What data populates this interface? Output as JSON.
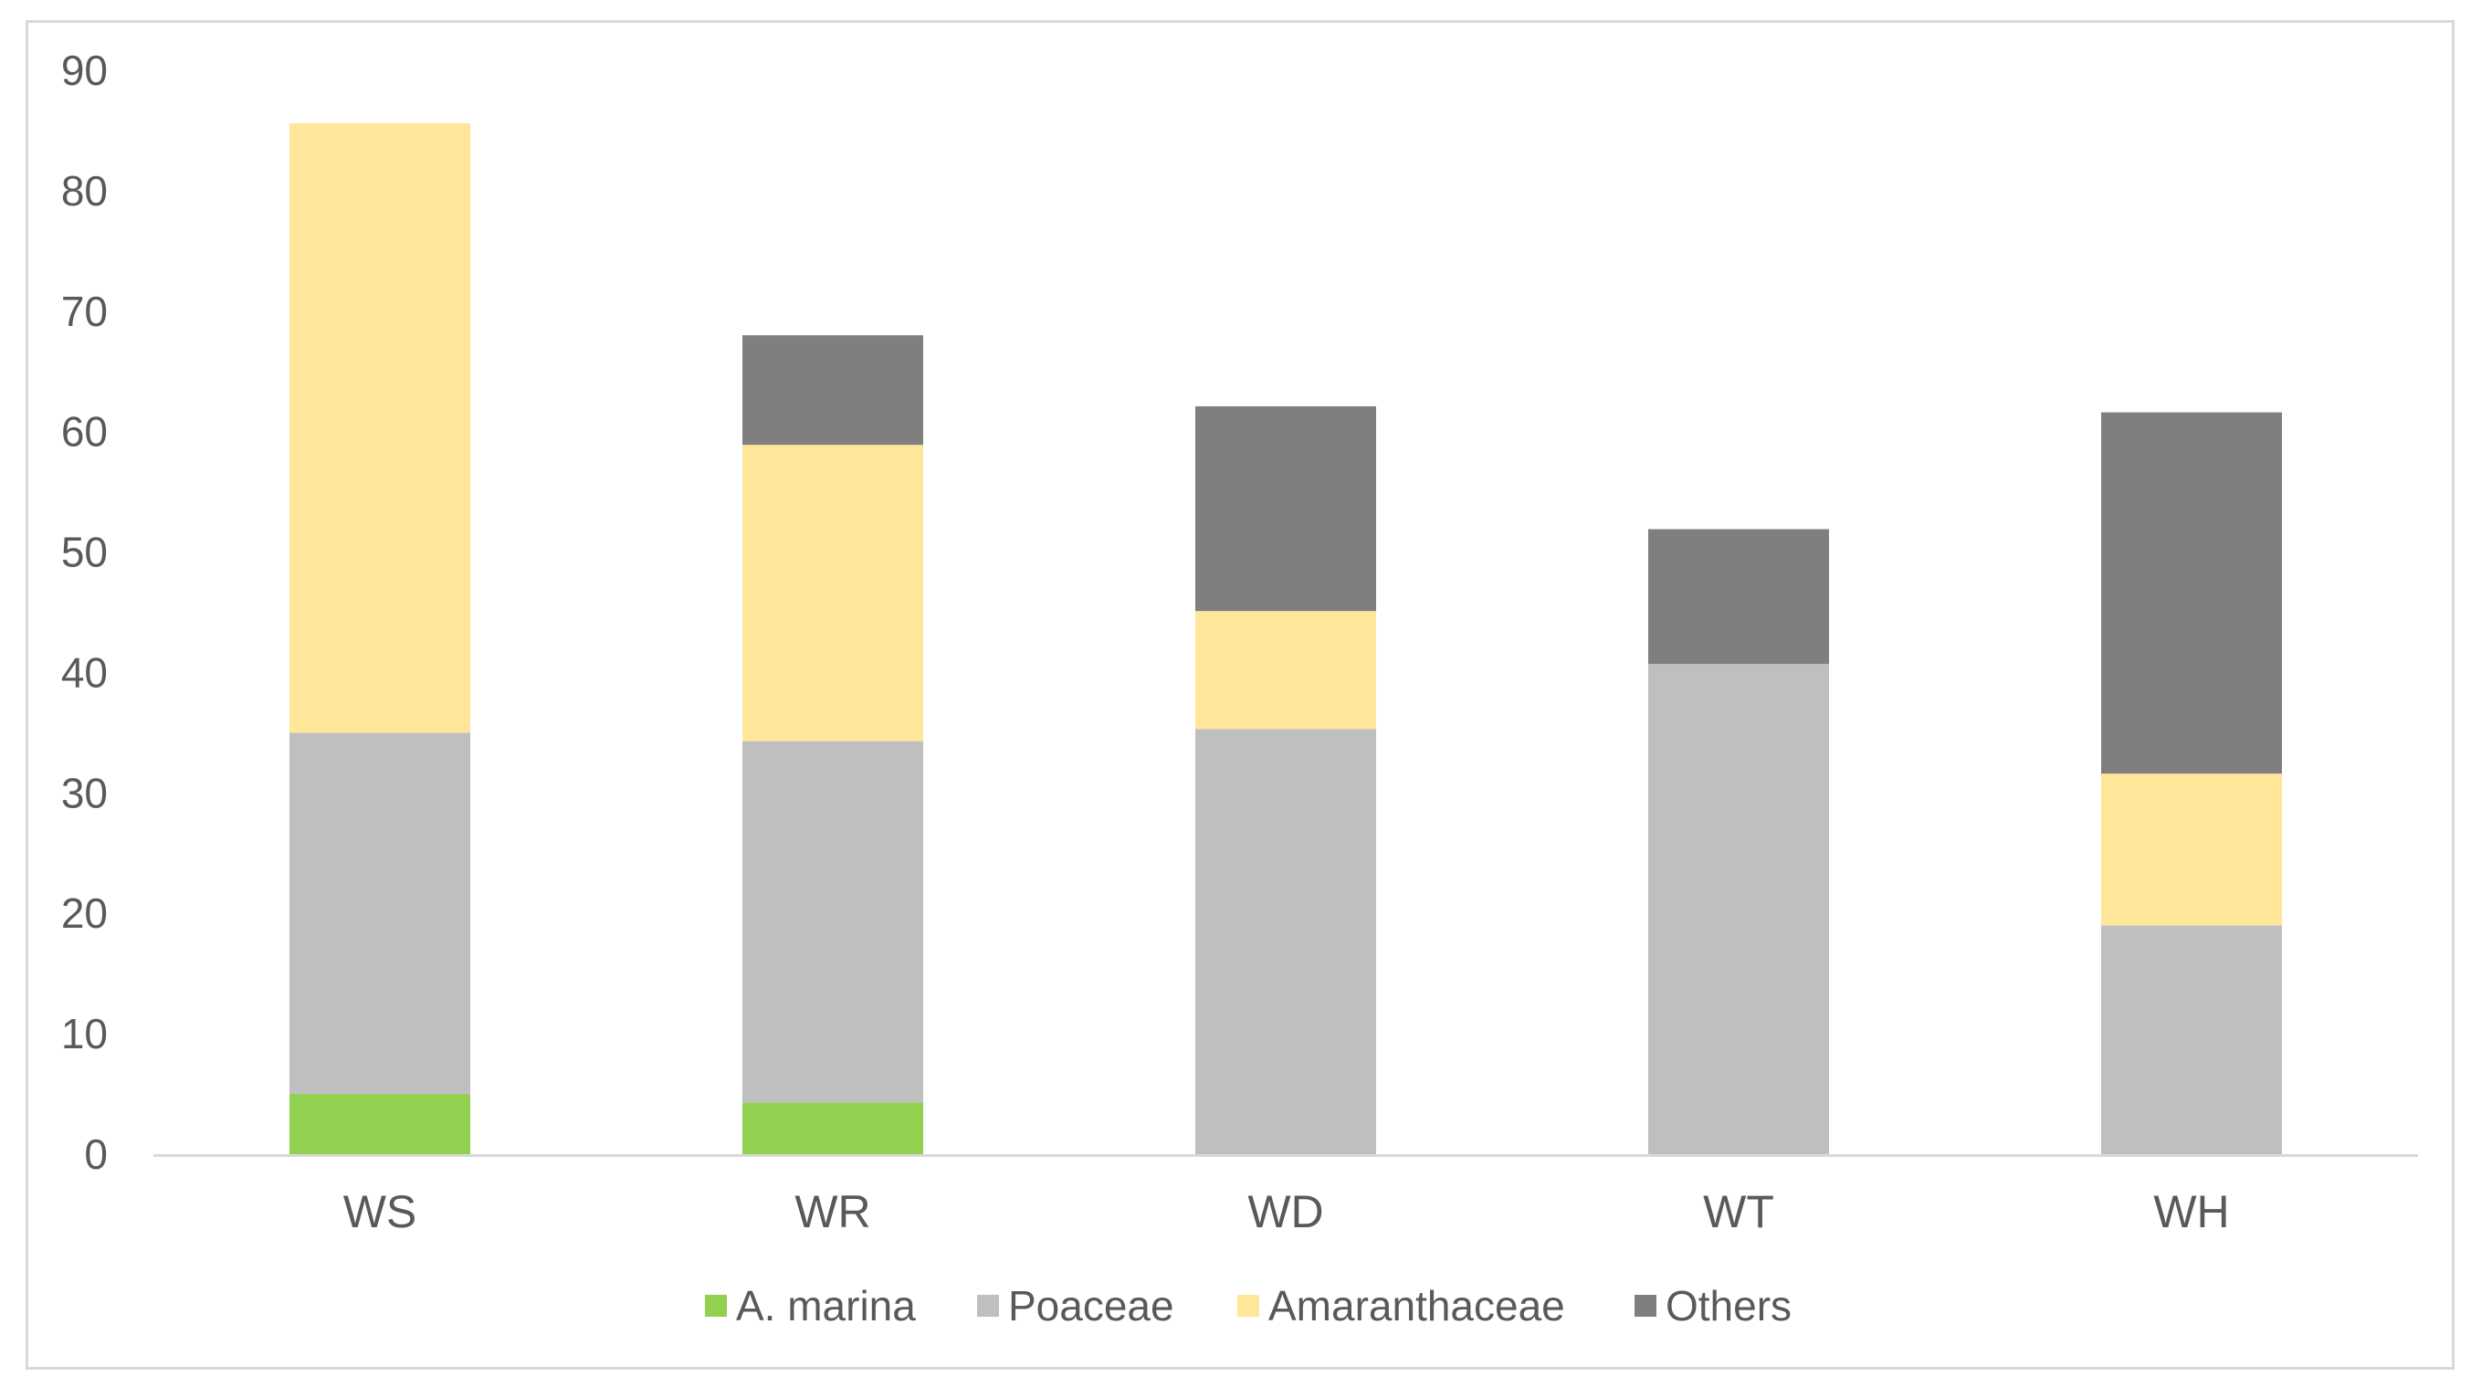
{
  "chart_data": {
    "type": "bar",
    "stacked": true,
    "categories": [
      "WS",
      "WR",
      "WD",
      "WT",
      "WH"
    ],
    "series": [
      {
        "name": "A. marina",
        "color": "#92d050",
        "values": [
          5,
          4.3,
          0,
          0,
          0
        ]
      },
      {
        "name": "Poaceae",
        "color": "#bfbfbf",
        "values": [
          30,
          30,
          35.3,
          40.7,
          19
        ]
      },
      {
        "name": "Amaranthaceae",
        "color": "#ffe699",
        "values": [
          50.6,
          24.6,
          9.8,
          0,
          12.6
        ]
      },
      {
        "name": "Others",
        "color": "#7f7f7f",
        "values": [
          0,
          9.1,
          17,
          11.2,
          30
        ]
      }
    ],
    "ylim": [
      0,
      90
    ],
    "yticks": [
      0,
      10,
      20,
      30,
      40,
      50,
      60,
      70,
      80,
      90
    ],
    "title": "",
    "xlabel": "",
    "ylabel": "",
    "grid": false,
    "legend_position": "bottom",
    "axis_color": "#d9d9d9"
  }
}
